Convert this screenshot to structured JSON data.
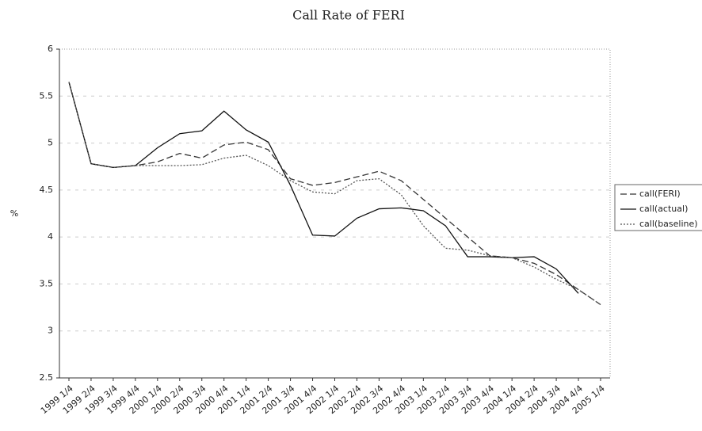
{
  "chart_data": {
    "type": "line",
    "title": "Call Rate of FERI",
    "ylabel": "%",
    "categories": [
      "1999 1/4",
      "1999 2/4",
      "1999 3/4",
      "1999 4/4",
      "2000 1/4",
      "2000 2/4",
      "2000 3/4",
      "2000 4/4",
      "2001 1/4",
      "2001 2/4",
      "2001 3/4",
      "2001 4/4",
      "2002 1/4",
      "2002 2/4",
      "2002 3/4",
      "2002 4/4",
      "2003 1/4",
      "2003 2/4",
      "2003 3/4",
      "2003 4/4",
      "2004 1/4",
      "2004 2/4",
      "2004 3/4",
      "2004 4/4",
      "2005 1/4"
    ],
    "series": [
      {
        "name": "call(FERI)",
        "color": "#333333",
        "dash": "8 4",
        "values": [
          5.65,
          4.78,
          4.74,
          4.76,
          4.8,
          4.89,
          4.84,
          4.98,
          5.01,
          4.93,
          4.62,
          4.55,
          4.58,
          4.64,
          4.7,
          4.6,
          4.4,
          4.2,
          4.0,
          3.8,
          3.78,
          3.72,
          3.6,
          3.44,
          3.28
        ]
      },
      {
        "name": "call(actual)",
        "color": "#111111",
        "dash": "none",
        "values": [
          5.65,
          4.78,
          4.74,
          4.76,
          4.95,
          5.1,
          5.13,
          5.34,
          5.14,
          5.01,
          4.55,
          4.02,
          4.01,
          4.2,
          4.3,
          4.31,
          4.28,
          4.12,
          3.79,
          3.79,
          3.78,
          3.79,
          3.66,
          3.4,
          null
        ]
      },
      {
        "name": "call(baseline)",
        "color": "#555555",
        "dash": "2 2",
        "values": [
          5.65,
          4.78,
          4.74,
          4.76,
          4.76,
          4.76,
          4.77,
          4.84,
          4.87,
          4.76,
          4.6,
          4.48,
          4.46,
          4.6,
          4.62,
          4.45,
          4.12,
          3.88,
          3.86,
          3.8,
          3.78,
          3.68,
          3.55,
          3.44,
          3.28
        ]
      }
    ],
    "ylim": [
      2.5,
      6
    ],
    "yticks": [
      2.5,
      3,
      3.5,
      4,
      4.5,
      5,
      5.5,
      6
    ],
    "grid": true,
    "legend": "right"
  }
}
